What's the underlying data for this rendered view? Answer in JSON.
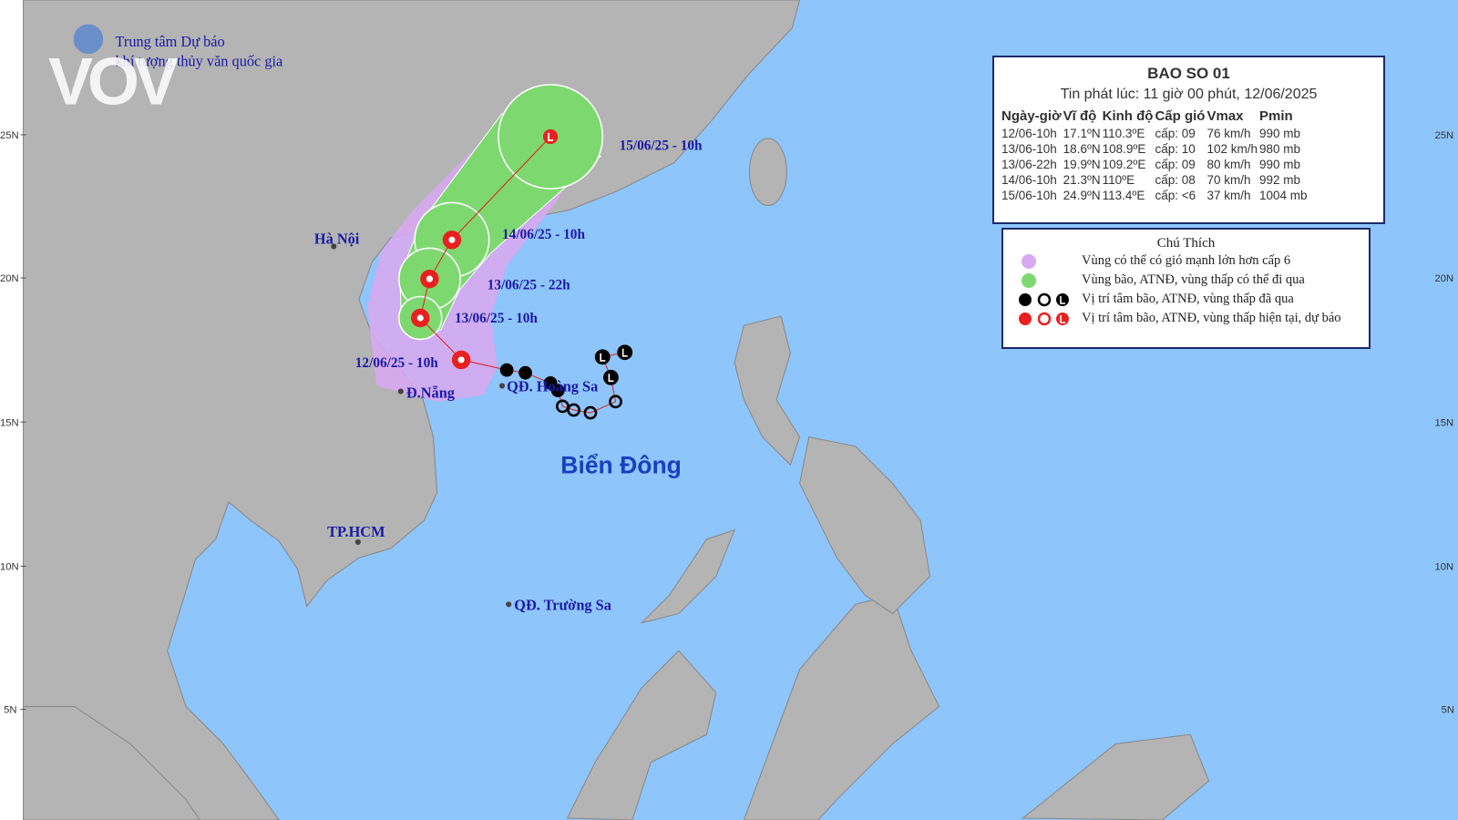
{
  "header": {
    "org_line1": "Trung tâm Dự báo",
    "org_line2": "khí tượng thủy văn quốc gia",
    "logo": "VOV"
  },
  "table": {
    "title": "BAO SO 01",
    "subtitle": "Tin phát lúc: 11 giờ 00 phút, 12/06/2025",
    "columns": [
      "Ngày-giờ",
      "Vĩ độ",
      "Kinh độ",
      "Cấp gió",
      "Vmax",
      "Pmin"
    ],
    "rows": [
      [
        "12/06-10h",
        "17.1ºN",
        "110.3ºE",
        "cấp: 09",
        "76 km/h",
        "990 mb"
      ],
      [
        "13/06-10h",
        "18.6ºN",
        "108.9ºE",
        "cấp: 10",
        "102 km/h",
        "980 mb"
      ],
      [
        "13/06-22h",
        "19.9ºN",
        "109.2ºE",
        "cấp: 09",
        "80 km/h",
        "990 mb"
      ],
      [
        "14/06-10h",
        "21.3ºN",
        "110ºE",
        "cấp: 08",
        "70 km/h",
        "992 mb"
      ],
      [
        "15/06-10h",
        "24.9ºN",
        "113.4ºE",
        "cấp: <6",
        "37 km/h",
        "1004 mb"
      ]
    ]
  },
  "legend": {
    "title": "Chú Thích",
    "items": [
      "Vùng có thể có gió mạnh lớn hơn cấp 6",
      "Vùng bão, ATNĐ, vùng thấp có thể đi qua",
      "Vị trí tâm bão, ATNĐ, vùng thấp đã qua",
      "Vị trí tâm bão, ATNĐ, vùng thấp hiện tại, dự báo"
    ]
  },
  "map": {
    "track_labels": [
      "15/06/25 - 10h",
      "14/06/25 - 10h",
      "13/06/25 - 22h",
      "13/06/25 - 10h",
      "12/06/25 - 10h"
    ],
    "places": [
      "Hà Nội",
      "Đ.Nẵng",
      "QĐ. Hoàng Sa",
      "TP.HCM",
      "QĐ. Trường Sa"
    ],
    "sea_label": "Biển Đông",
    "lat_labels": [
      "25N",
      "20N",
      "15N",
      "10N",
      "5N"
    ]
  }
}
